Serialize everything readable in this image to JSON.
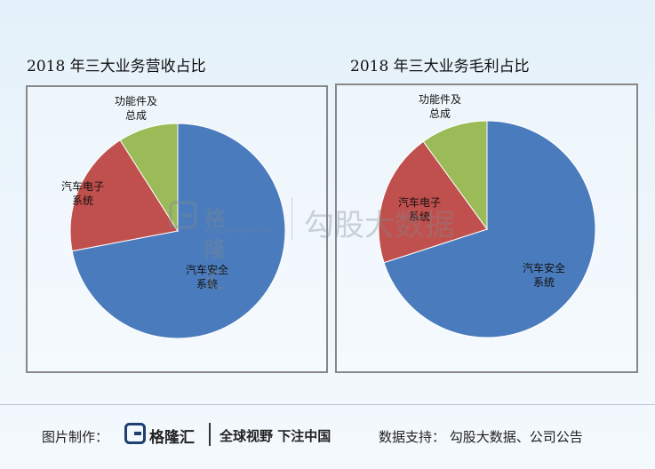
{
  "chart_data": [
    {
      "type": "pie",
      "title": "2018 年三大业务营收占比",
      "slices": [
        {
          "label": "汽车安全系统",
          "value": 72,
          "color": "#4a7bbc"
        },
        {
          "label": "汽车电子系统",
          "value": 19,
          "color": "#c0504d"
        },
        {
          "label": "功能件及总成",
          "value": 9,
          "color": "#9bbb59"
        }
      ]
    },
    {
      "type": "pie",
      "title": "2018 年三大业务毛利占比",
      "slices": [
        {
          "label": "汽车安全系统",
          "value": 70,
          "color": "#4a7bbc"
        },
        {
          "label": "汽车电子系统",
          "value": 20,
          "color": "#c0504d"
        },
        {
          "label": "功能件及总成",
          "value": 10,
          "color": "#9bbb59"
        }
      ]
    }
  ],
  "watermark": {
    "brand": "格隆汇",
    "site": "www.gelonghui.com",
    "name": "勾股大数据"
  },
  "footer": {
    "made_by": "图片制作：",
    "brand": "格隆汇",
    "slogan": "全球视野 下注中国",
    "source": "数据支持：  勾股大数据、公司公告"
  }
}
